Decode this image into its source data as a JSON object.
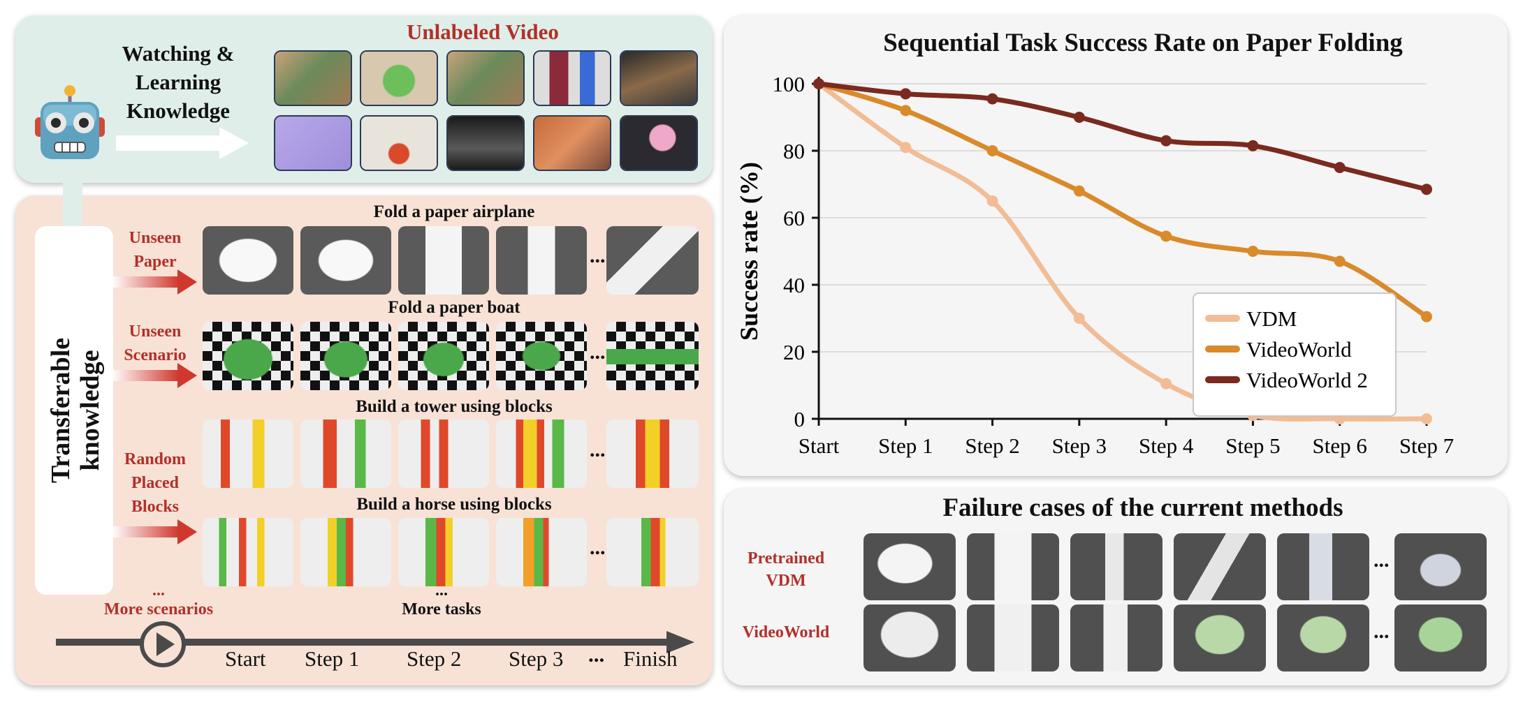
{
  "top_left": {
    "title": "Unlabeled Video",
    "watch_line1": "Watching &",
    "watch_line2": "Learning",
    "watch_line3": "Knowledge"
  },
  "bottom_left": {
    "transfer_line1": "Transferable",
    "transfer_line2": "knowledge",
    "categories": [
      {
        "line1": "Unseen",
        "line2": "Paper",
        "line3": ""
      },
      {
        "line1": "Unseen",
        "line2": "Scenario",
        "line3": ""
      },
      {
        "line1": "Random",
        "line2": "Placed",
        "line3": "Blocks"
      }
    ],
    "tasks": [
      "Fold a paper airplane",
      "Fold a paper boat",
      "Build a tower using blocks",
      "Build a horse using blocks"
    ],
    "more_scenarios_dots": "...",
    "more_scenarios": "More scenarios",
    "more_tasks_dots": "...",
    "more_tasks": "More tasks",
    "ellipsis": "...",
    "timeline": [
      "Start",
      "Step 1",
      "Step 2",
      "Step 3",
      "...",
      "Finish"
    ]
  },
  "chart_data": {
    "type": "line",
    "title": "Sequential Task Success Rate on Paper Folding",
    "xlabel": "",
    "ylabel": "Success rate (%)",
    "categories": [
      "Start",
      "Step 1",
      "Step 2",
      "Step 3",
      "Step 4",
      "Step 5",
      "Step 6",
      "Step 7"
    ],
    "ylim": [
      0,
      100
    ],
    "yticks": [
      0,
      20,
      40,
      60,
      80,
      100
    ],
    "grid": true,
    "legend_position": "lower-right",
    "series": [
      {
        "name": "VDM",
        "color": "#f2bc95",
        "values": [
          100,
          81,
          65,
          30,
          10.5,
          1,
          0,
          0
        ]
      },
      {
        "name": "VideoWorld",
        "color": "#d98a2b",
        "values": [
          100,
          92,
          80,
          68,
          54.5,
          50,
          47,
          30.5
        ]
      },
      {
        "name": "VideoWorld 2",
        "color": "#7a2a1e",
        "values": [
          100,
          97,
          95.5,
          90,
          83,
          81.5,
          75,
          68.5
        ]
      }
    ]
  },
  "failure": {
    "title": "Failure cases of the current methods",
    "row1_line1": "Pretrained",
    "row1_line2": "VDM",
    "row2_label": "VideoWorld",
    "ellipsis": "..."
  },
  "colors": {
    "panel_green": "#dfeee9",
    "panel_peach": "#f8e2d6",
    "panel_gray": "#f5f5f5",
    "accent_red": "#b2302a"
  }
}
